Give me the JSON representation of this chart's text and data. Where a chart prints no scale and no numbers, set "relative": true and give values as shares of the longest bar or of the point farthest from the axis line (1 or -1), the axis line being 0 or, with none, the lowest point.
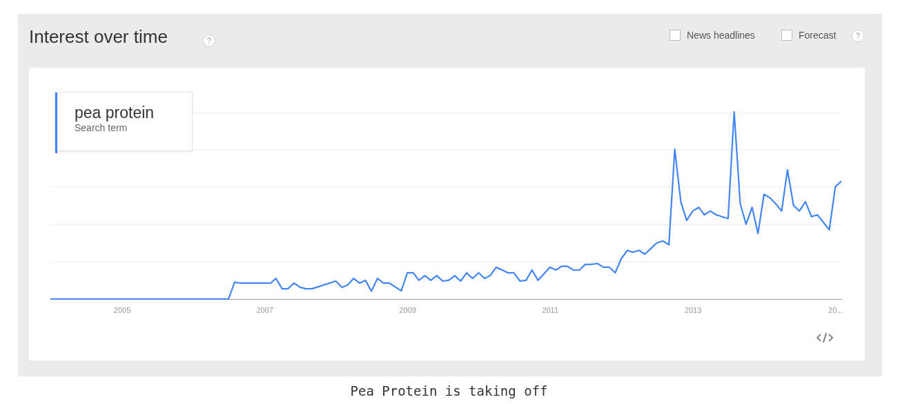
{
  "chart_data": {
    "type": "line",
    "title": "Interest over time",
    "relative": true,
    "grid": "y",
    "legend": "top left",
    "legend_title": "Search term",
    "xlim": [
      "2004-01",
      "2015-02"
    ],
    "xticks": [
      "2005",
      "2007",
      "2009",
      "2011",
      "2013",
      {
        "value": "2015",
        "label": "20..."
      }
    ],
    "annotations": [
      "News headlines",
      "Forecast",
      "Pea Protein is taking off"
    ],
    "x": [
      "2004-01",
      "2006-07",
      "2006-08",
      "2006-09",
      "2007-02",
      "2007-03",
      "2007-04",
      "2007-05",
      "2007-06",
      "2007-07",
      "2007-08",
      "2007-09",
      "2008-01",
      "2008-02",
      "2008-03",
      "2008-04",
      "2008-05",
      "2008-06",
      "2008-07",
      "2008-08",
      "2008-09",
      "2008-10",
      "2008-12",
      "2009-01",
      "2009-02",
      "2009-03",
      "2009-04",
      "2009-05",
      "2009-06",
      "2009-07",
      "2009-08",
      "2009-09",
      "2009-10",
      "2009-11",
      "2009-12",
      "2010-01",
      "2010-02",
      "2010-03",
      "2010-04",
      "2010-06",
      "2010-07",
      "2010-08",
      "2010-09",
      "2010-10",
      "2010-11",
      "2011-01",
      "2011-02",
      "2011-03",
      "2011-04",
      "2011-05",
      "2011-06",
      "2011-07",
      "2011-08",
      "2011-09",
      "2011-10",
      "2011-11",
      "2011-12",
      "2012-01",
      "2012-02",
      "2012-03",
      "2012-04",
      "2012-05",
      "2012-06",
      "2012-07",
      "2012-08",
      "2012-09",
      "2012-10",
      "2012-11",
      "2012-12",
      "2013-01",
      "2013-02",
      "2013-03",
      "2013-04",
      "2013-05",
      "2013-07",
      "2013-08",
      "2013-09",
      "2013-10",
      "2013-11",
      "2013-12",
      "2014-01",
      "2014-02",
      "2014-03",
      "2014-04",
      "2014-05",
      "2014-06",
      "2014-07",
      "2014-08",
      "2014-09",
      "2014-10",
      "2014-12",
      "2015-01",
      "2015-02"
    ],
    "series": [
      {
        "name": "pea protein",
        "color": "#4285f4",
        "values": [
          0,
          0,
          0.09,
          0.085,
          0.085,
          0.11,
          0.055,
          0.055,
          0.085,
          0.063,
          0.055,
          0.055,
          0.096,
          0.063,
          0.074,
          0.11,
          0.085,
          0.1,
          0.042,
          0.11,
          0.085,
          0.085,
          0.044,
          0.14,
          0.14,
          0.1,
          0.125,
          0.1,
          0.125,
          0.096,
          0.1,
          0.125,
          0.096,
          0.14,
          0.11,
          0.14,
          0.11,
          0.125,
          0.17,
          0.14,
          0.14,
          0.096,
          0.1,
          0.155,
          0.1,
          0.17,
          0.155,
          0.175,
          0.175,
          0.155,
          0.155,
          0.185,
          0.185,
          0.19,
          0.17,
          0.17,
          0.14,
          0.215,
          0.26,
          0.25,
          0.26,
          0.24,
          0.27,
          0.3,
          0.31,
          0.29,
          0.8,
          0.52,
          0.42,
          0.47,
          0.49,
          0.45,
          0.47,
          0.45,
          0.43,
          1,
          0.51,
          0.4,
          0.49,
          0.35,
          0.56,
          0.54,
          0.51,
          0.47,
          0.69,
          0.5,
          0.47,
          0.52,
          0.44,
          0.45,
          0.37,
          0.6,
          0.63
        ]
      }
    ]
  }
}
